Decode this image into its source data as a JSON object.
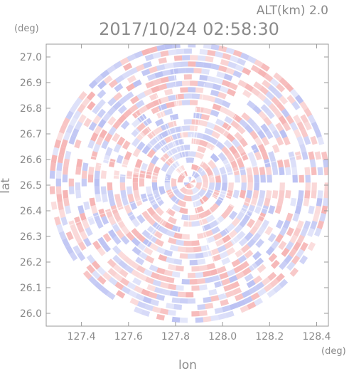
{
  "header": {
    "altitude_label": "ALT(km) 2.0",
    "timestamp": "2017/10/24 02:58:30"
  },
  "chart_data": {
    "type": "heatmap",
    "title": "2017/10/24 02:58:30",
    "subtitle": "ALT(km) 2.0",
    "xlabel": "lon",
    "ylabel": "lat",
    "x_unit": "(deg)",
    "y_unit": "(deg)",
    "xlim": [
      127.25,
      128.45
    ],
    "ylim": [
      25.95,
      27.05
    ],
    "x_ticks": [
      "127.4",
      "127.6",
      "127.8",
      "128.0",
      "128.2",
      "128.4"
    ],
    "x_tick_values": [
      127.4,
      127.6,
      127.8,
      128.0,
      128.2,
      128.4
    ],
    "y_ticks": [
      "26.0",
      "26.1",
      "26.2",
      "26.3",
      "26.4",
      "26.5",
      "26.6",
      "26.7",
      "26.8",
      "26.9",
      "27.0"
    ],
    "y_tick_values": [
      26.0,
      26.1,
      26.2,
      26.3,
      26.4,
      26.5,
      26.6,
      26.7,
      26.8,
      26.9,
      27.0
    ],
    "radar_center": {
      "lon": 127.86,
      "lat": 26.51
    },
    "radar_range_lat_deg": 0.55,
    "colors": {
      "positive": "#f4a6a6",
      "negative": "#a9b1f0",
      "axis": "#8a8a8a"
    }
  }
}
